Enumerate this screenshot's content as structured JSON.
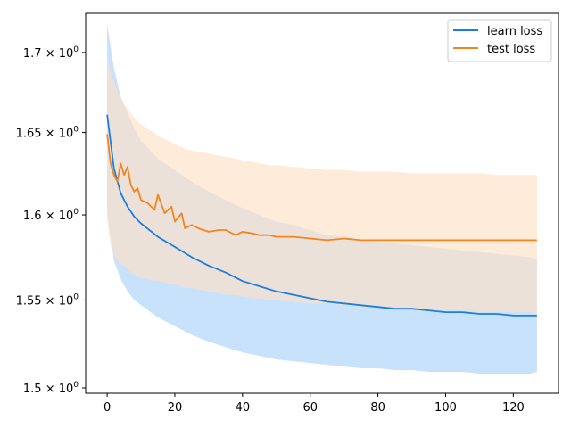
{
  "chart_data": {
    "type": "line",
    "title": "",
    "xlabel": "",
    "ylabel": "",
    "yscale": "log",
    "xlim": [
      -6.35,
      133.35
    ],
    "ylim": [
      1.497,
      1.725
    ],
    "xticks": [
      0,
      20,
      40,
      60,
      80,
      100,
      120
    ],
    "xtick_labels": [
      "0",
      "20",
      "40",
      "60",
      "80",
      "100",
      "120"
    ],
    "yticks": [
      1.5,
      1.55,
      1.6,
      1.65,
      1.7
    ],
    "ytick_base": [
      "1.5 × 10",
      "1.55 × 10",
      "1.6 × 10",
      "1.65 × 10",
      "1.7 × 10"
    ],
    "ytick_exp": [
      "0",
      "0",
      "0",
      "0",
      "0"
    ],
    "legend_position": "top-right",
    "grid": false,
    "series": [
      {
        "name": "learn loss",
        "color": "#1a7fe0",
        "band_color": "#c8e2fc",
        "x": [
          0,
          2,
          4,
          6,
          8,
          10,
          15,
          20,
          25,
          30,
          35,
          40,
          45,
          50,
          55,
          60,
          65,
          70,
          75,
          80,
          85,
          90,
          95,
          100,
          105,
          110,
          115,
          120,
          125,
          127
        ],
        "y": [
          1.661,
          1.628,
          1.613,
          1.605,
          1.599,
          1.595,
          1.587,
          1.581,
          1.575,
          1.57,
          1.566,
          1.561,
          1.558,
          1.555,
          1.553,
          1.551,
          1.549,
          1.548,
          1.547,
          1.546,
          1.545,
          1.545,
          1.544,
          1.543,
          1.543,
          1.542,
          1.542,
          1.541,
          1.541,
          1.541
        ],
        "upper": [
          1.718,
          1.69,
          1.672,
          1.662,
          1.653,
          1.645,
          1.634,
          1.627,
          1.62,
          1.614,
          1.609,
          1.604,
          1.6,
          1.596,
          1.594,
          1.591,
          1.588,
          1.587,
          1.585,
          1.584,
          1.583,
          1.582,
          1.581,
          1.58,
          1.579,
          1.578,
          1.577,
          1.576,
          1.575,
          1.574
        ],
        "lower": [
          1.601,
          1.573,
          1.562,
          1.555,
          1.55,
          1.547,
          1.54,
          1.535,
          1.53,
          1.526,
          1.523,
          1.52,
          1.518,
          1.516,
          1.515,
          1.514,
          1.513,
          1.512,
          1.511,
          1.511,
          1.51,
          1.51,
          1.509,
          1.509,
          1.509,
          1.508,
          1.508,
          1.508,
          1.508,
          1.509
        ]
      },
      {
        "name": "test loss",
        "color": "#f5841f",
        "band_color": "#fde0c6",
        "x": [
          0,
          1,
          2,
          3,
          4,
          5,
          6,
          7,
          8,
          9,
          10,
          12,
          14,
          15,
          17,
          19,
          20,
          22,
          23,
          25,
          27,
          30,
          33,
          35,
          38,
          40,
          43,
          45,
          48,
          50,
          55,
          60,
          65,
          70,
          75,
          80,
          85,
          90,
          95,
          100,
          105,
          110,
          115,
          120,
          125,
          127
        ],
        "y": [
          1.649,
          1.631,
          1.624,
          1.62,
          1.631,
          1.624,
          1.629,
          1.618,
          1.614,
          1.616,
          1.609,
          1.607,
          1.603,
          1.612,
          1.601,
          1.605,
          1.596,
          1.601,
          1.592,
          1.594,
          1.592,
          1.59,
          1.591,
          1.591,
          1.588,
          1.59,
          1.589,
          1.588,
          1.588,
          1.587,
          1.587,
          1.586,
          1.585,
          1.586,
          1.585,
          1.585,
          1.585,
          1.585,
          1.585,
          1.585,
          1.585,
          1.585,
          1.585,
          1.585,
          1.585,
          1.585
        ],
        "upper": [
          1.698,
          1.688,
          1.682,
          1.676,
          1.672,
          1.668,
          1.665,
          1.662,
          1.659,
          1.657,
          1.655,
          1.652,
          1.65,
          1.648,
          1.646,
          1.644,
          1.643,
          1.641,
          1.64,
          1.639,
          1.638,
          1.637,
          1.636,
          1.635,
          1.634,
          1.633,
          1.632,
          1.631,
          1.63,
          1.63,
          1.629,
          1.628,
          1.627,
          1.627,
          1.626,
          1.626,
          1.626,
          1.625,
          1.625,
          1.625,
          1.625,
          1.625,
          1.624,
          1.624,
          1.624,
          1.624
        ],
        "lower": [
          1.597,
          1.582,
          1.576,
          1.573,
          1.571,
          1.57,
          1.568,
          1.566,
          1.565,
          1.564,
          1.563,
          1.562,
          1.561,
          1.561,
          1.56,
          1.559,
          1.559,
          1.558,
          1.557,
          1.557,
          1.556,
          1.555,
          1.554,
          1.553,
          1.553,
          1.552,
          1.551,
          1.551,
          1.55,
          1.55,
          1.549,
          1.548,
          1.548,
          1.547,
          1.546,
          1.546,
          1.545,
          1.545,
          1.544,
          1.544,
          1.544,
          1.543,
          1.543,
          1.543,
          1.543,
          1.542
        ]
      }
    ]
  }
}
